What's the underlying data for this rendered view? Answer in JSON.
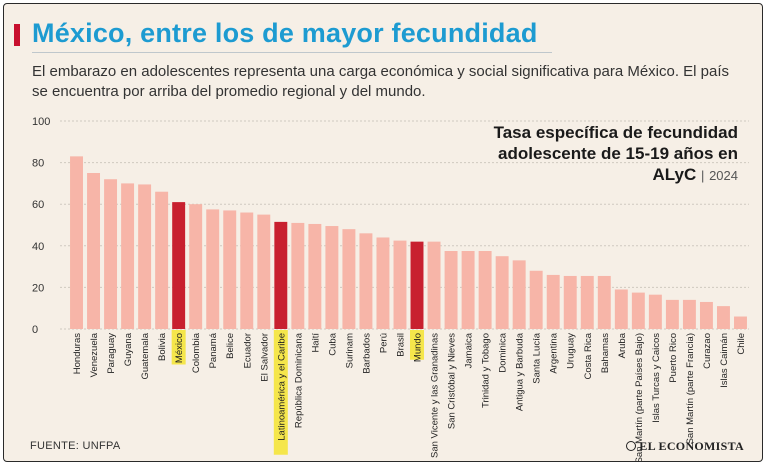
{
  "header": {
    "title": "México, entre los de mayor fecundidad",
    "subtitle": "El embarazo en adolescentes representa una carga económica y social significativa para México. El país se encuentra por arriba del promedio regional y del mundo."
  },
  "legend": {
    "line1": "Tasa específica de fecundidad",
    "line2": "adolescente de 15-19 años en",
    "line3": "ALyC",
    "separator": "|",
    "year": "2024"
  },
  "footer": {
    "source": "FUENTE: UNFPA",
    "brand": "EL ECONOMISTA"
  },
  "colors": {
    "bar": "#f7b5a8",
    "highlight_bar": "#c8202f",
    "label_highlight": "#f5e43a",
    "grid": "#cfc9c0"
  },
  "chart_data": {
    "type": "bar",
    "title": "Tasa específica de fecundidad adolescente de 15-19 años en ALyC | 2024",
    "xlabel": "",
    "ylabel": "",
    "ylim": [
      0,
      100
    ],
    "yticks": [
      0,
      20,
      40,
      60,
      80,
      100
    ],
    "grid": true,
    "categories": [
      "Honduras",
      "Venezuela",
      "Paraguay",
      "Guyana",
      "Guatemala",
      "Bolivia",
      "México",
      "Colombia",
      "Panamá",
      "Belice",
      "Ecuador",
      "El Salvador",
      "Latinoamérica y el Caribe",
      "República Dominicana",
      "Haití",
      "Cuba",
      "Surinam",
      "Barbados",
      "Perú",
      "Brasil",
      "Mundo",
      "San Vicente y las Granadinas",
      "San Cristóbal y Nieves",
      "Jamaica",
      "Trinidad y Tobago",
      "Dominica",
      "Antigua y Barbuda",
      "Santa Lucía",
      "Argentina",
      "Uruguay",
      "Costa Rica",
      "Bahamas",
      "Aruba",
      "San Martín (parte Países Bajo)",
      "Islas Turcas y Caicos",
      "Puerto Rico",
      "San Martín (parte Francia)",
      "Curazao",
      "Islas Caimán",
      "Chile"
    ],
    "values": [
      83,
      75,
      72,
      70,
      69.5,
      66,
      61,
      60,
      57.5,
      57,
      56,
      55,
      51.5,
      51,
      50.5,
      49.5,
      48,
      46,
      44,
      42.5,
      42,
      42,
      37.5,
      37.5,
      37.5,
      35,
      33,
      28,
      26,
      25.5,
      25.5,
      25.5,
      19,
      17.5,
      16.5,
      14,
      14,
      13,
      11,
      6
    ],
    "highlighted": [
      "México",
      "Latinoamérica y el Caribe",
      "Mundo"
    ]
  }
}
